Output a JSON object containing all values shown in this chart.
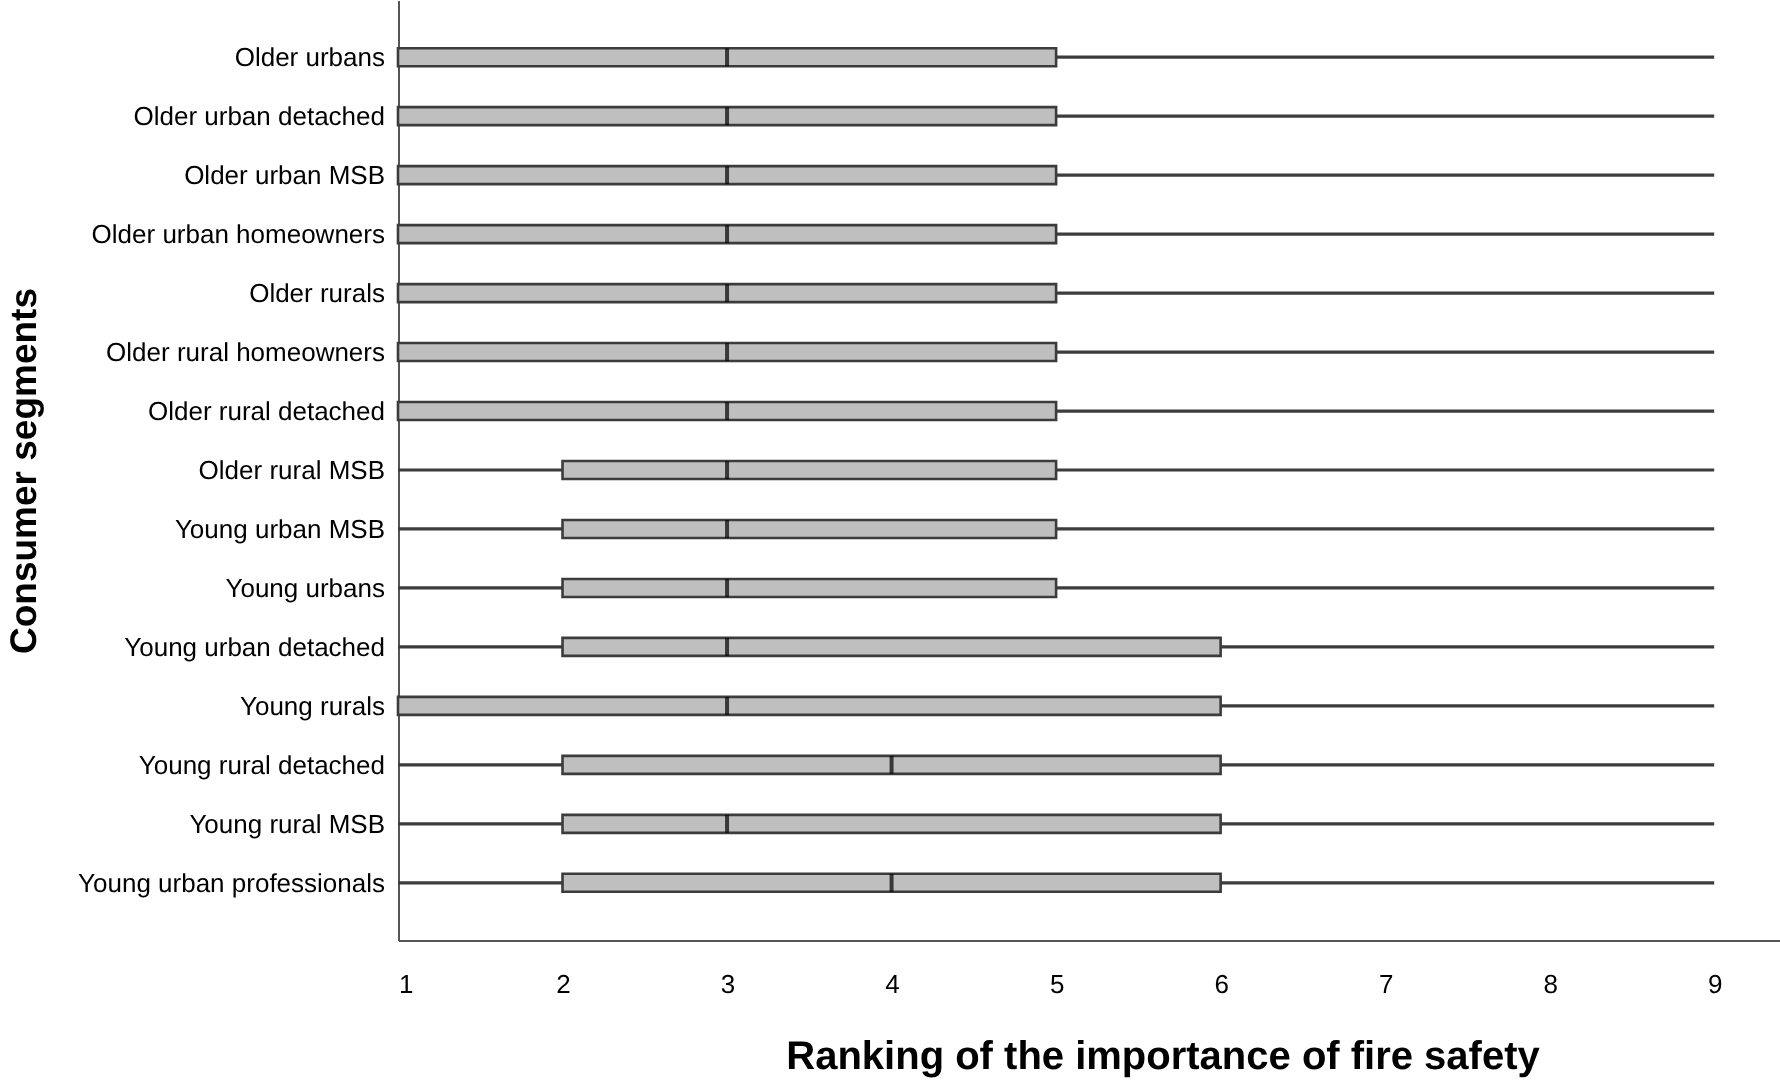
{
  "chart_data": {
    "type": "box",
    "orientation": "horizontal",
    "xlabel": "Ranking of the importance of fire safety",
    "ylabel": "Consumer segments",
    "categories": [
      "Older urbans",
      "Older urban detached",
      "Older urban MSB",
      "Older urban homeowners",
      "Older rurals",
      "Older rural homeowners",
      "Older rural detached",
      "Older rural MSB",
      "Young urban MSB",
      "Young urbans",
      "Young urban detached",
      "Young rurals",
      "Young rural detached",
      "Young rural MSB",
      "Young urban professionals"
    ],
    "boxes": [
      {
        "low": 1,
        "q1": 1,
        "median": 3,
        "q3": 5,
        "high": 9
      },
      {
        "low": 1,
        "q1": 1,
        "median": 3,
        "q3": 5,
        "high": 9
      },
      {
        "low": 1,
        "q1": 1,
        "median": 3,
        "q3": 5,
        "high": 9
      },
      {
        "low": 1,
        "q1": 1,
        "median": 3,
        "q3": 5,
        "high": 9
      },
      {
        "low": 1,
        "q1": 1,
        "median": 3,
        "q3": 5,
        "high": 9
      },
      {
        "low": 1,
        "q1": 1,
        "median": 3,
        "q3": 5,
        "high": 9
      },
      {
        "low": 1,
        "q1": 1,
        "median": 3,
        "q3": 5,
        "high": 9
      },
      {
        "low": 1,
        "q1": 2,
        "median": 3,
        "q3": 5,
        "high": 9
      },
      {
        "low": 1,
        "q1": 2,
        "median": 3,
        "q3": 5,
        "high": 9
      },
      {
        "low": 1,
        "q1": 2,
        "median": 3,
        "q3": 5,
        "high": 9
      },
      {
        "low": 1,
        "q1": 2,
        "median": 3,
        "q3": 6,
        "high": 9
      },
      {
        "low": 1,
        "q1": 1,
        "median": 3,
        "q3": 6,
        "high": 9
      },
      {
        "low": 1,
        "q1": 2,
        "median": 4,
        "q3": 6,
        "high": 9
      },
      {
        "low": 1,
        "q1": 2,
        "median": 3,
        "q3": 6,
        "high": 9
      },
      {
        "low": 1,
        "q1": 2,
        "median": 4,
        "q3": 6,
        "high": 9
      }
    ],
    "color": "#bfbfbf",
    "xlim": [
      1,
      9.4
    ],
    "xticks": [
      1,
      2,
      3,
      4,
      5,
      6,
      7,
      8,
      9
    ],
    "grid": false
  }
}
